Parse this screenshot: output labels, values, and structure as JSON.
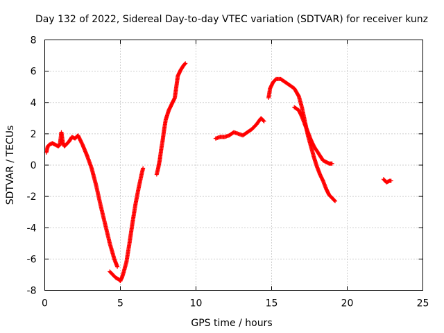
{
  "chart_data": {
    "type": "scatter",
    "title": "Day 132 of 2022, Sidereal Day-to-day VTEC variation (SDTVAR) for receiver kunz",
    "xlabel": "GPS time / hours",
    "ylabel": "SDTVAR / TECUs",
    "xlim": [
      0,
      25
    ],
    "ylim": [
      -8,
      8
    ],
    "xticks": [
      "0",
      "5",
      "10",
      "15",
      "20",
      "25"
    ],
    "yticks": [
      "-8",
      "-6",
      "-4",
      "-2",
      "0",
      "2",
      "4",
      "6",
      "8"
    ],
    "grid": true,
    "marker": "plus",
    "color": "#ff0000",
    "segments": [
      {
        "x": [
          0.1,
          0.2,
          0.3,
          0.5,
          0.7,
          0.9,
          1.0,
          1.1,
          1.2,
          1.3,
          1.4,
          1.6,
          1.8,
          2.0,
          2.2,
          2.5,
          2.8,
          3.1,
          3.4,
          3.7,
          4.0,
          4.3,
          4.6,
          4.8
        ],
        "y": [
          0.8,
          1.2,
          1.3,
          1.4,
          1.3,
          1.2,
          1.3,
          2.1,
          1.4,
          1.2,
          1.3,
          1.5,
          1.8,
          1.7,
          1.9,
          1.3,
          0.6,
          -0.2,
          -1.3,
          -2.6,
          -3.8,
          -5.0,
          -6.0,
          -6.5
        ]
      },
      {
        "x": [
          4.3,
          4.5,
          4.7,
          4.9,
          5.0,
          5.1,
          5.2,
          5.4,
          5.6,
          5.8,
          6.0,
          6.2,
          6.4,
          6.5
        ],
        "y": [
          -6.8,
          -7.0,
          -7.2,
          -7.3,
          -7.4,
          -7.2,
          -6.9,
          -6.2,
          -5.0,
          -3.7,
          -2.5,
          -1.5,
          -0.6,
          -0.2
        ]
      },
      {
        "x": [
          7.4,
          7.5,
          7.6,
          7.7,
          7.8,
          7.9,
          8.0,
          8.2,
          8.4,
          8.6,
          8.7,
          8.8,
          9.0,
          9.2,
          9.3
        ],
        "y": [
          -0.6,
          -0.2,
          0.3,
          1.0,
          1.6,
          2.3,
          2.9,
          3.5,
          3.9,
          4.3,
          5.0,
          5.7,
          6.1,
          6.4,
          6.5
        ]
      },
      {
        "x": [
          11.3,
          11.6,
          11.9,
          12.2,
          12.5,
          12.8,
          13.1,
          13.4,
          13.7,
          14.0,
          14.3,
          14.5
        ],
        "y": [
          1.7,
          1.8,
          1.8,
          1.9,
          2.1,
          2.0,
          1.9,
          2.1,
          2.3,
          2.6,
          3.0,
          2.8
        ]
      },
      {
        "x": [
          14.8,
          14.9,
          15.1,
          15.3,
          15.6,
          15.9,
          16.2,
          16.5,
          16.8,
          17.0,
          17.2,
          17.4,
          17.6,
          17.8,
          18.0,
          18.2,
          18.4,
          18.6,
          18.8,
          19.0,
          19.2
        ],
        "y": [
          4.3,
          4.9,
          5.3,
          5.5,
          5.5,
          5.3,
          5.1,
          4.9,
          4.4,
          3.7,
          2.8,
          1.9,
          1.2,
          0.5,
          -0.1,
          -0.6,
          -1.0,
          -1.5,
          -1.9,
          -2.1,
          -2.3
        ]
      },
      {
        "x": [
          16.5,
          16.8,
          17.0,
          17.2,
          17.4,
          17.6,
          17.8,
          18.0,
          18.2,
          18.4,
          18.6,
          18.8,
          19.0
        ],
        "y": [
          3.7,
          3.5,
          3.1,
          2.6,
          2.1,
          1.6,
          1.2,
          0.9,
          0.6,
          0.3,
          0.2,
          0.1,
          0.1
        ]
      },
      {
        "x": [
          22.4,
          22.6,
          22.8,
          22.9
        ],
        "y": [
          -0.9,
          -1.1,
          -1.0,
          -1.0
        ]
      }
    ]
  }
}
